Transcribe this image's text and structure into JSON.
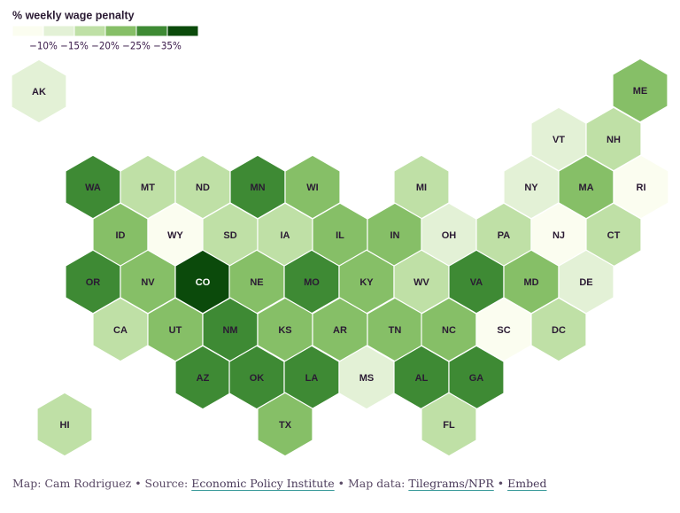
{
  "legend": {
    "title": "% weekly wage penalty",
    "colors": [
      "#fbfdf0",
      "#e3f1d6",
      "#bfe0a6",
      "#86bf67",
      "#3e8a34",
      "#0b4a0b"
    ],
    "labels": [
      "−10%",
      "−15%",
      "−20%",
      "−25%",
      "−35%"
    ]
  },
  "states": [
    {
      "label": "AK",
      "color": "#e3f1d6"
    },
    {
      "label": "ME",
      "color": "#86bf67"
    },
    {
      "label": "VT",
      "color": "#e3f1d6"
    },
    {
      "label": "NH",
      "color": "#bfe0a6"
    },
    {
      "label": "WA",
      "color": "#3e8a34"
    },
    {
      "label": "MT",
      "color": "#bfe0a6"
    },
    {
      "label": "ND",
      "color": "#bfe0a6"
    },
    {
      "label": "MN",
      "color": "#3e8a34"
    },
    {
      "label": "WI",
      "color": "#86bf67"
    },
    {
      "label": "MI",
      "color": "#bfe0a6"
    },
    {
      "label": "NY",
      "color": "#e3f1d6"
    },
    {
      "label": "MA",
      "color": "#86bf67"
    },
    {
      "label": "RI",
      "color": "#fbfdf0"
    },
    {
      "label": "ID",
      "color": "#86bf67"
    },
    {
      "label": "WY",
      "color": "#fbfdf0"
    },
    {
      "label": "SD",
      "color": "#bfe0a6"
    },
    {
      "label": "IA",
      "color": "#bfe0a6"
    },
    {
      "label": "IL",
      "color": "#86bf67"
    },
    {
      "label": "IN",
      "color": "#86bf67"
    },
    {
      "label": "OH",
      "color": "#e3f1d6"
    },
    {
      "label": "PA",
      "color": "#bfe0a6"
    },
    {
      "label": "NJ",
      "color": "#fbfdf0"
    },
    {
      "label": "CT",
      "color": "#bfe0a6"
    },
    {
      "label": "OR",
      "color": "#3e8a34"
    },
    {
      "label": "NV",
      "color": "#86bf67"
    },
    {
      "label": "CO",
      "color": "#0b4a0b"
    },
    {
      "label": "NE",
      "color": "#86bf67"
    },
    {
      "label": "MO",
      "color": "#3e8a34"
    },
    {
      "label": "KY",
      "color": "#86bf67"
    },
    {
      "label": "WV",
      "color": "#bfe0a6"
    },
    {
      "label": "VA",
      "color": "#3e8a34"
    },
    {
      "label": "MD",
      "color": "#86bf67"
    },
    {
      "label": "DE",
      "color": "#e3f1d6"
    },
    {
      "label": "CA",
      "color": "#bfe0a6"
    },
    {
      "label": "UT",
      "color": "#86bf67"
    },
    {
      "label": "NM",
      "color": "#3e8a34"
    },
    {
      "label": "KS",
      "color": "#86bf67"
    },
    {
      "label": "AR",
      "color": "#86bf67"
    },
    {
      "label": "TN",
      "color": "#86bf67"
    },
    {
      "label": "NC",
      "color": "#86bf67"
    },
    {
      "label": "SC",
      "color": "#fbfdf0"
    },
    {
      "label": "DC",
      "color": "#bfe0a6"
    },
    {
      "label": "AZ",
      "color": "#3e8a34"
    },
    {
      "label": "OK",
      "color": "#3e8a34"
    },
    {
      "label": "LA",
      "color": "#3e8a34"
    },
    {
      "label": "MS",
      "color": "#e3f1d6"
    },
    {
      "label": "AL",
      "color": "#3e8a34"
    },
    {
      "label": "GA",
      "color": "#3e8a34"
    },
    {
      "label": "HI",
      "color": "#bfe0a6"
    },
    {
      "label": "TX",
      "color": "#86bf67"
    },
    {
      "label": "FL",
      "color": "#bfe0a6"
    }
  ],
  "footer": [
    {
      "text": "Map: Cam Rodriguez • Source: "
    },
    {
      "text": "Economic Policy Institute",
      "link": true
    },
    {
      "text": " • Map data: "
    },
    {
      "text": "Tilegrams/NPR",
      "link": true
    },
    {
      "text": " • "
    },
    {
      "text": "Embed",
      "link": true
    }
  ]
}
